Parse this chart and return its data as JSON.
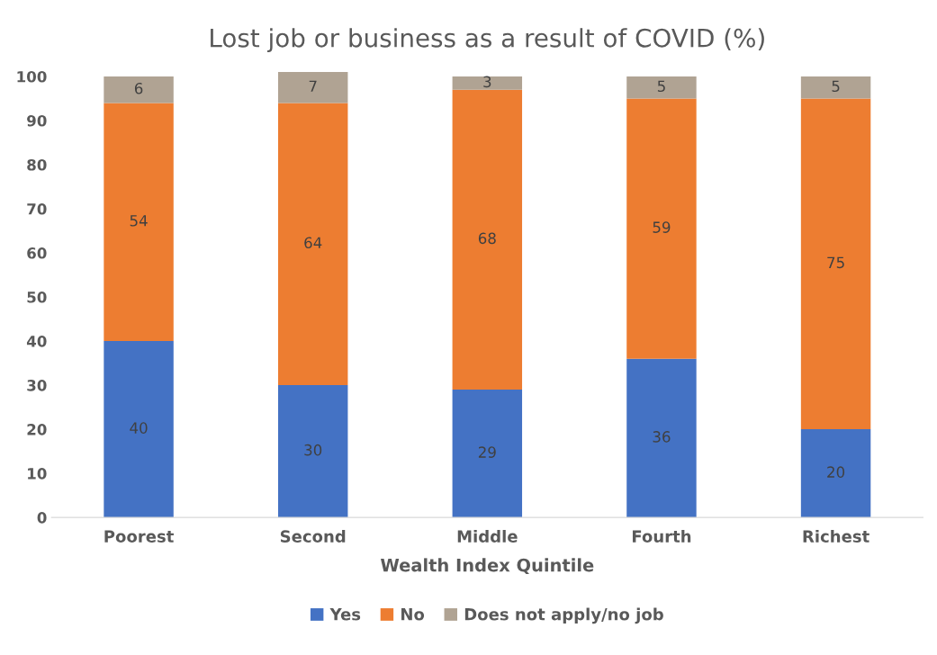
{
  "chart_data": {
    "type": "bar",
    "title": "Lost job or business as a result of COVID (%)",
    "xlabel": "Wealth Index Quintile",
    "categories": [
      "Poorest",
      "Second",
      "Middle",
      "Fourth",
      "Richest"
    ],
    "series": [
      {
        "name": "Yes",
        "color": "#4472c4",
        "values": [
          40,
          30,
          29,
          36,
          20
        ]
      },
      {
        "name": "No",
        "color": "#ed7d31",
        "values": [
          54,
          64,
          68,
          59,
          75
        ]
      },
      {
        "name": "Does not apply/no job",
        "color": "#b0a393",
        "values": [
          6,
          7,
          3,
          5,
          5
        ]
      }
    ],
    "stacked": true,
    "ylim": [
      0,
      101
    ],
    "yticks": [
      0,
      10,
      20,
      30,
      40,
      50,
      60,
      70,
      80,
      90,
      100
    ],
    "data_labels": true,
    "grid": false,
    "legend": "bottom"
  }
}
